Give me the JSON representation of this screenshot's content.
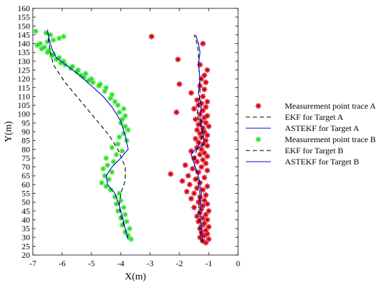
{
  "chart_data": {
    "type": "scatter",
    "xlabel": "X(m)",
    "ylabel": "Y(m)",
    "xlim": [
      -7,
      0
    ],
    "ylim": [
      20,
      160
    ],
    "xticks": [
      -7,
      -6,
      -5,
      -4,
      -3,
      -2,
      -1,
      0
    ],
    "yticks": [
      20,
      25,
      30,
      35,
      40,
      45,
      50,
      55,
      60,
      65,
      70,
      75,
      80,
      85,
      90,
      95,
      100,
      105,
      110,
      115,
      120,
      125,
      130,
      135,
      140,
      145,
      150,
      155,
      160
    ],
    "grid": false,
    "legend_position": "right",
    "colors": {
      "trace_a": "#cc0000",
      "trace_a_halo": "#ff99cc",
      "trace_b": "#22dd22",
      "ekf": "#000000",
      "astekf": "#0000cc"
    },
    "series": [
      {
        "name": "Measurement point trace A",
        "style": "star",
        "color": "#cc0000",
        "x": [
          -1.1,
          -1.2,
          -1.0,
          -1.3,
          -1.15,
          -1.05,
          -1.25,
          -1.1,
          -1.3,
          -1.0,
          -1.2,
          -1.15,
          -1.35,
          -1.05,
          -1.2,
          -1.4,
          -1.1,
          -1.3,
          -1.0,
          -1.25,
          -1.5,
          -1.2,
          -1.05,
          -1.35,
          -1.15,
          -1.6,
          -1.3,
          -1.1,
          -1.5,
          -1.75,
          -1.2,
          -1.4,
          -1.05,
          -1.65,
          -1.3,
          -1.9,
          -1.45,
          -1.15,
          -1.7,
          -2.3,
          -1.35,
          -1.05,
          -1.55,
          -1.25,
          -1.8,
          -1.1,
          -1.4,
          -1.2,
          -1.5,
          -1.05,
          -1.3,
          -1.15,
          -1.6,
          -1.25,
          -1.4,
          -1.05,
          -1.2,
          -1.35,
          -1.1,
          -1.45,
          -1.25,
          -1.05,
          -1.3,
          -1.15,
          -1.4,
          -1.2,
          -1.0,
          -1.35,
          -1.1,
          -1.25,
          -1.45,
          -1.15,
          -1.05,
          -1.3,
          -2.1,
          -1.2,
          -1.5,
          -1.1,
          -1.35,
          -1.25,
          -1.05,
          -1.4,
          -1.2,
          -1.6,
          -1.15,
          -1.3,
          -2.0,
          -1.1,
          -1.25,
          -1.15,
          -1.05,
          -1.3,
          -2.05,
          -1.2,
          -2.95
        ],
        "y": [
          27,
          28,
          29,
          30,
          31,
          32,
          33,
          34,
          35,
          36,
          37,
          38,
          39,
          40,
          41,
          42,
          43,
          44,
          45,
          46,
          47,
          48,
          49,
          50,
          51,
          52,
          53,
          54,
          55,
          56,
          57,
          58,
          59,
          60,
          61,
          62,
          63,
          64,
          65,
          66,
          67,
          68,
          69,
          70,
          71,
          72,
          73,
          74,
          75,
          76,
          77,
          78,
          79,
          80,
          81,
          82,
          83,
          84,
          85,
          86,
          87,
          88,
          89,
          90,
          91,
          92,
          93,
          94,
          95,
          96,
          97,
          98,
          99,
          100,
          101,
          102,
          103,
          104,
          105,
          106,
          107,
          108,
          110,
          112,
          114,
          116,
          117,
          118,
          120,
          122,
          125,
          128,
          131,
          140,
          144
        ]
      },
      {
        "name": "EKF for Target A",
        "style": "dashed",
        "color": "#000000",
        "x": [
          -1.25,
          -1.3,
          -1.35,
          -1.3,
          -1.4,
          -1.5,
          -1.45,
          -1.35,
          -1.2,
          -1.3,
          -1.4,
          -1.35,
          -1.3,
          -1.3,
          -1.35,
          -1.35,
          -1.4,
          -1.5
        ],
        "y": [
          27,
          35,
          45,
          55,
          65,
          72,
          78,
          82,
          88,
          95,
          100,
          105,
          112,
          120,
          128,
          135,
          140,
          145
        ]
      },
      {
        "name": "ASTEKF for Target A",
        "style": "solid",
        "color": "#0000cc",
        "x": [
          -1.2,
          -1.25,
          -1.3,
          -1.25,
          -1.35,
          -1.5,
          -1.6,
          -1.45,
          -1.15,
          -1.2,
          -1.3,
          -1.25,
          -1.35,
          -1.3,
          -1.35,
          -1.3,
          -1.35,
          -1.45
        ],
        "y": [
          27,
          35,
          45,
          55,
          65,
          72,
          77,
          80,
          83,
          90,
          98,
          105,
          112,
          120,
          128,
          135,
          140,
          145
        ]
      },
      {
        "name": "Measurement point trace B",
        "style": "star",
        "color": "#22dd22",
        "x": [
          -3.65,
          -3.75,
          -3.85,
          -3.7,
          -3.95,
          -3.8,
          -4.0,
          -3.85,
          -4.1,
          -3.9,
          -4.15,
          -4.0,
          -4.2,
          -4.05,
          -4.35,
          -4.5,
          -4.65,
          -4.4,
          -4.55,
          -4.3,
          -4.6,
          -4.45,
          -4.25,
          -4.5,
          -4.15,
          -3.95,
          -4.3,
          -4.1,
          -3.8,
          -4.05,
          -3.9,
          -3.75,
          -3.85,
          -4.0,
          -3.95,
          -3.85,
          -4.05,
          -3.9,
          -4.1,
          -4.2,
          -4.35,
          -4.3,
          -4.55,
          -4.5,
          -4.75,
          -4.7,
          -4.95,
          -5.1,
          -5.0,
          -5.25,
          -5.35,
          -5.2,
          -5.5,
          -5.45,
          -5.7,
          -5.65,
          -5.9,
          -6.05,
          -5.95,
          -6.2,
          -6.1,
          -6.35,
          -6.3,
          -6.5,
          -6.45,
          -6.7,
          -6.6,
          -6.85,
          -6.75,
          -6.5,
          -6.3,
          -6.1,
          -5.95,
          -6.4,
          -6.55,
          -6.9
        ],
        "y": [
          29,
          31,
          33,
          35,
          37,
          39,
          41,
          43,
          45,
          47,
          49,
          51,
          53,
          55,
          57,
          59,
          61,
          63,
          65,
          67,
          69,
          71,
          73,
          75,
          77,
          79,
          81,
          83,
          85,
          87,
          89,
          91,
          93,
          95,
          97,
          99,
          101,
          103,
          105,
          107,
          109,
          111,
          113,
          115,
          116,
          117,
          118,
          119,
          120,
          121,
          122,
          123,
          124,
          125,
          126,
          127,
          128,
          129,
          130,
          131,
          132,
          133,
          134,
          135,
          136,
          137,
          138,
          139,
          140,
          141,
          142,
          143,
          144,
          145,
          146,
          147
        ]
      },
      {
        "name": "EKF for Target B",
        "style": "dashed",
        "color": "#000000",
        "x": [
          -3.75,
          -3.85,
          -4.0,
          -4.05,
          -4.0,
          -3.85,
          -3.85,
          -4.1,
          -4.4,
          -4.9,
          -5.4,
          -5.9,
          -6.3,
          -6.4,
          -6.45,
          -6.5
        ],
        "y": [
          29,
          35,
          42,
          48,
          55,
          62,
          70,
          80,
          88,
          98,
          108,
          118,
          128,
          135,
          140,
          148
        ]
      },
      {
        "name": "ASTEKF for Target B",
        "style": "solid",
        "color": "#0000cc",
        "x": [
          -3.75,
          -3.85,
          -3.95,
          -4.05,
          -4.2,
          -4.45,
          -4.5,
          -4.3,
          -4.0,
          -3.75,
          -3.85,
          -4.0,
          -4.3,
          -4.6,
          -5.0,
          -5.4,
          -5.8,
          -6.2,
          -6.35,
          -6.45,
          -6.5
        ],
        "y": [
          29,
          35,
          42,
          48,
          55,
          60,
          65,
          70,
          75,
          80,
          88,
          96,
          104,
          110,
          116,
          122,
          127,
          132,
          137,
          143,
          148
        ]
      }
    ]
  }
}
